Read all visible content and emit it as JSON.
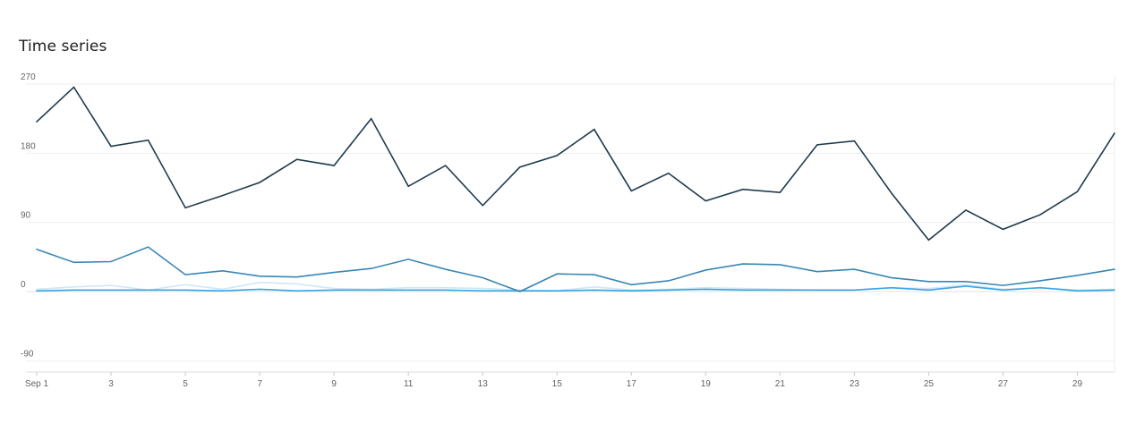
{
  "card": {
    "title": "Time series"
  },
  "chart_data": {
    "type": "line",
    "title": "Time series",
    "xlabel": "",
    "ylabel": "",
    "x": [
      1,
      2,
      3,
      4,
      5,
      6,
      7,
      8,
      9,
      10,
      11,
      12,
      13,
      14,
      15,
      16,
      17,
      18,
      19,
      20,
      21,
      22,
      23,
      24,
      25,
      26,
      27,
      28,
      29,
      30
    ],
    "x_tick_values": [
      1,
      3,
      5,
      7,
      9,
      11,
      13,
      15,
      17,
      19,
      21,
      23,
      25,
      27,
      29
    ],
    "x_tick_labels": [
      "Sep 1",
      "3",
      "5",
      "7",
      "9",
      "11",
      "13",
      "15",
      "17",
      "19",
      "21",
      "23",
      "25",
      "27",
      "29"
    ],
    "y_ticks": [
      -90,
      0,
      90,
      180,
      270
    ],
    "ylim": [
      -105,
      270
    ],
    "grid": true,
    "legend": "none",
    "series": [
      {
        "color": "#1e3a4c",
        "values": [
          221,
          266,
          189,
          197,
          109,
          125,
          142,
          172,
          164,
          225,
          137,
          164,
          112,
          162,
          177,
          211,
          131,
          154,
          118,
          133,
          129,
          191,
          196,
          128,
          67,
          106,
          81,
          100,
          130,
          206
        ]
      },
      {
        "color": "#3a86b4",
        "values": [
          55,
          38,
          39,
          58,
          22,
          27,
          20,
          19,
          25,
          30,
          42,
          29,
          18,
          0,
          23,
          22,
          9,
          14,
          28,
          36,
          35,
          26,
          29,
          18,
          13,
          13,
          8,
          14,
          21,
          29
        ]
      },
      {
        "color": "#3aa7e2",
        "values": [
          1,
          2,
          2,
          2,
          2,
          1,
          3,
          1,
          2,
          2,
          2,
          2,
          1,
          1,
          1,
          2,
          1,
          2,
          3,
          2,
          2,
          2,
          2,
          5,
          2,
          7,
          2,
          5,
          1,
          2
        ]
      },
      {
        "color": "#cfe6f5",
        "values": [
          3,
          6,
          8,
          2,
          9,
          3,
          12,
          10,
          4,
          3,
          5,
          5,
          4,
          2,
          1,
          6,
          2,
          3,
          5,
          4,
          3,
          2,
          2,
          5,
          4,
          9,
          3,
          5,
          2,
          3
        ]
      }
    ]
  }
}
